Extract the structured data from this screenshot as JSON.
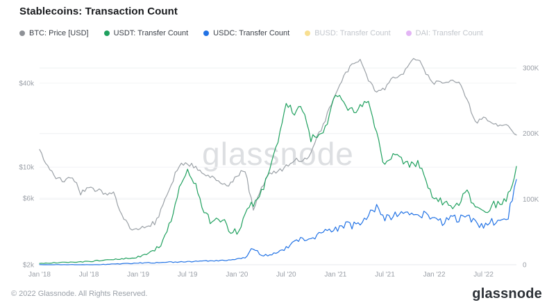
{
  "header": {
    "title": "Stablecoins: Transaction Count"
  },
  "watermark": "glassnode",
  "legend": {
    "items": [
      {
        "id": "btc",
        "label": "BTC: Price [USD]",
        "color": "#8e9196",
        "dimmed": false
      },
      {
        "id": "usdt",
        "label": "USDT: Transfer Count",
        "color": "#1fa05e",
        "dimmed": false
      },
      {
        "id": "usdc",
        "label": "USDC: Transfer Count",
        "color": "#2172e5",
        "dimmed": false
      },
      {
        "id": "busd",
        "label": "BUSD: Transfer Count",
        "color": "#f0b90b",
        "dimmed": true
      },
      {
        "id": "dai",
        "label": "DAI: Transfer Count",
        "color": "#c15ae8",
        "dimmed": true
      }
    ]
  },
  "footer": {
    "copyright": "© 2022 Glassnode. All Rights Reserved.",
    "logo_text": "glassnode"
  },
  "chart_data": {
    "type": "line",
    "title": "Stablecoins: Transaction Count",
    "grid": true,
    "legend_position": "top-left",
    "months": [
      "2018-01",
      "2018-02",
      "2018-03",
      "2018-04",
      "2018-05",
      "2018-06",
      "2018-07",
      "2018-08",
      "2018-09",
      "2018-10",
      "2018-11",
      "2018-12",
      "2019-01",
      "2019-02",
      "2019-03",
      "2019-04",
      "2019-05",
      "2019-06",
      "2019-07",
      "2019-08",
      "2019-09",
      "2019-10",
      "2019-11",
      "2019-12",
      "2020-01",
      "2020-02",
      "2020-03",
      "2020-04",
      "2020-05",
      "2020-06",
      "2020-07",
      "2020-08",
      "2020-09",
      "2020-10",
      "2020-11",
      "2020-12",
      "2021-01",
      "2021-02",
      "2021-03",
      "2021-04",
      "2021-05",
      "2021-06",
      "2021-07",
      "2021-08",
      "2021-09",
      "2021-10",
      "2021-11",
      "2021-12",
      "2022-01",
      "2022-02",
      "2022-03",
      "2022-04",
      "2022-05",
      "2022-06",
      "2022-07",
      "2022-08",
      "2022-09",
      "2022-10",
      "2022-11"
    ],
    "x_axis": {
      "ticks": [
        "Jan '18",
        "Jul '18",
        "Jan '19",
        "Jul '19",
        "Jan '20",
        "Jul '20",
        "Jan '21",
        "Jul '21",
        "Jan '22",
        "Jul '22"
      ],
      "tick_month_indexes": [
        0,
        6,
        12,
        18,
        24,
        30,
        36,
        42,
        48,
        54
      ]
    },
    "left_axis": {
      "label": "BTC Price [USD]",
      "scale": "log",
      "ticks": [
        "$2k",
        "$6k",
        "$10k",
        "$40k"
      ],
      "tick_values": [
        2000,
        6000,
        10000,
        40000
      ],
      "min": 2000,
      "max": 75000
    },
    "right_axis": {
      "label": "Transfer Count",
      "scale": "linear",
      "ticks": [
        "0",
        "100K",
        "200K",
        "300K"
      ],
      "tick_values": [
        0,
        100000,
        200000,
        300000
      ],
      "min": 0,
      "max": 335000
    },
    "series": [
      {
        "name": "BTC: Price [USD]",
        "axis": "left",
        "color": "#9aa0a6",
        "visible": true,
        "values": [
          13500,
          10000,
          8500,
          8000,
          8500,
          6500,
          7000,
          6800,
          6500,
          6400,
          4500,
          3700,
          3500,
          3800,
          4000,
          5200,
          7500,
          10500,
          10500,
          10200,
          8800,
          8500,
          8000,
          7200,
          8800,
          9500,
          5000,
          7000,
          9200,
          9300,
          10000,
          11500,
          10800,
          12500,
          17500,
          24000,
          33000,
          45000,
          55000,
          58000,
          42000,
          34000,
          36000,
          45000,
          45000,
          57000,
          60000,
          48000,
          40000,
          40000,
          43000,
          41000,
          31000,
          21000,
          22000,
          21500,
          19500,
          19500,
          17000
        ]
      },
      {
        "name": "USDT: Transfer Count",
        "axis": "right",
        "color": "#1fa05e",
        "visible": true,
        "values": [
          2000,
          2500,
          3000,
          3500,
          4000,
          4500,
          5000,
          6000,
          7000,
          8000,
          9000,
          10000,
          12000,
          15000,
          22000,
          35000,
          65000,
          115000,
          150000,
          118000,
          78000,
          65000,
          70000,
          55000,
          48000,
          75000,
          95000,
          110000,
          150000,
          185000,
          250000,
          230000,
          240000,
          190000,
          200000,
          215000,
          260000,
          245000,
          235000,
          240000,
          250000,
          200000,
          150000,
          170000,
          160000,
          150000,
          155000,
          130000,
          100000,
          95000,
          90000,
          95000,
          110000,
          85000,
          80000,
          90000,
          95000,
          105000,
          150000
        ]
      },
      {
        "name": "USDC: Transfer Count",
        "axis": "right",
        "color": "#2172e5",
        "visible": true,
        "values": [
          0,
          0,
          0,
          0,
          0,
          0,
          0,
          0,
          500,
          1000,
          1500,
          2000,
          2500,
          3000,
          3000,
          3500,
          4000,
          4000,
          4500,
          5000,
          5500,
          6000,
          6500,
          7000,
          9000,
          11000,
          26000,
          15000,
          15000,
          18000,
          25000,
          35000,
          40000,
          40000,
          45000,
          50000,
          55000,
          60000,
          60000,
          65000,
          78000,
          88000,
          70000,
          75000,
          80000,
          75000,
          80000,
          75000,
          70000,
          65000,
          70000,
          70000,
          75000,
          62000,
          60000,
          65000,
          70000,
          75000,
          130000
        ]
      },
      {
        "name": "BUSD: Transfer Count",
        "axis": "right",
        "color": "#f0b90b",
        "visible": false,
        "values": []
      },
      {
        "name": "DAI: Transfer Count",
        "axis": "right",
        "color": "#c15ae8",
        "visible": false,
        "values": []
      }
    ]
  }
}
